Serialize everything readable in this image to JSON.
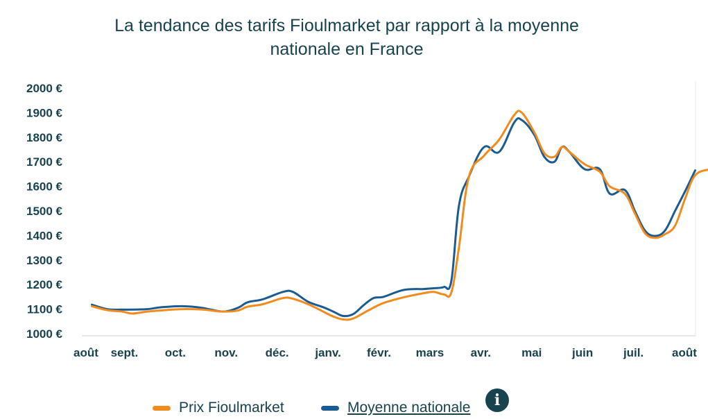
{
  "chart_data": {
    "type": "line",
    "title_lines": [
      "La tendance des tarifs Fioulmarket par rapport à la moyenne",
      "nationale en France"
    ],
    "x_labels": [
      "août",
      "sept.",
      "oct.",
      "nov.",
      "déc.",
      "janv.",
      "févr.",
      "mars",
      "avr.",
      "mai",
      "juin",
      "juil.",
      "août"
    ],
    "y_ticks": [
      "2000 €",
      "1900 €",
      "1800 €",
      "1700 €",
      "1600 €",
      "1500 €",
      "1400 €",
      "1300 €",
      "1200 €",
      "1100 €",
      "1000 €"
    ],
    "ylim": [
      1000,
      2000
    ],
    "xlim": [
      0,
      12
    ],
    "grid": false,
    "legend_position": "bottom",
    "series": [
      {
        "name": "Prix Fioulmarket",
        "color": "#f28a1c",
        "points": [
          [
            0.2,
            1112
          ],
          [
            0.5,
            1096
          ],
          [
            0.8,
            1090
          ],
          [
            1.0,
            1082
          ],
          [
            1.3,
            1090
          ],
          [
            1.6,
            1095
          ],
          [
            2.0,
            1100
          ],
          [
            2.4,
            1098
          ],
          [
            2.8,
            1090
          ],
          [
            3.1,
            1094
          ],
          [
            3.3,
            1110
          ],
          [
            3.6,
            1120
          ],
          [
            4.0,
            1145
          ],
          [
            4.2,
            1142
          ],
          [
            4.5,
            1120
          ],
          [
            4.8,
            1090
          ],
          [
            5.0,
            1070
          ],
          [
            5.2,
            1058
          ],
          [
            5.4,
            1062
          ],
          [
            5.7,
            1095
          ],
          [
            6.0,
            1125
          ],
          [
            6.4,
            1148
          ],
          [
            6.8,
            1165
          ],
          [
            7.0,
            1170
          ],
          [
            7.2,
            1160
          ],
          [
            7.35,
            1168
          ],
          [
            7.5,
            1350
          ],
          [
            7.7,
            1640
          ],
          [
            8.0,
            1725
          ],
          [
            8.3,
            1790
          ],
          [
            8.6,
            1890
          ],
          [
            8.75,
            1900
          ],
          [
            9.0,
            1820
          ],
          [
            9.2,
            1735
          ],
          [
            9.4,
            1720
          ],
          [
            9.55,
            1760
          ],
          [
            9.7,
            1740
          ],
          [
            10.0,
            1690
          ],
          [
            10.3,
            1660
          ],
          [
            10.5,
            1600
          ],
          [
            10.8,
            1570
          ],
          [
            11.0,
            1490
          ],
          [
            11.2,
            1410
          ],
          [
            11.4,
            1390
          ],
          [
            11.6,
            1405
          ],
          [
            11.8,
            1440
          ],
          [
            12.0,
            1550
          ],
          [
            12.2,
            1645
          ],
          [
            12.5,
            1670
          ]
        ]
      },
      {
        "name": "Moyenne nationale",
        "color": "#1a5c91",
        "points": [
          [
            0.2,
            1118
          ],
          [
            0.5,
            1100
          ],
          [
            0.8,
            1098
          ],
          [
            1.0,
            1098
          ],
          [
            1.3,
            1100
          ],
          [
            1.6,
            1108
          ],
          [
            2.0,
            1112
          ],
          [
            2.4,
            1105
          ],
          [
            2.8,
            1090
          ],
          [
            3.1,
            1105
          ],
          [
            3.3,
            1128
          ],
          [
            3.6,
            1140
          ],
          [
            4.0,
            1170
          ],
          [
            4.2,
            1170
          ],
          [
            4.5,
            1130
          ],
          [
            4.8,
            1108
          ],
          [
            5.0,
            1090
          ],
          [
            5.2,
            1072
          ],
          [
            5.4,
            1080
          ],
          [
            5.6,
            1115
          ],
          [
            5.8,
            1145
          ],
          [
            6.0,
            1150
          ],
          [
            6.4,
            1178
          ],
          [
            6.8,
            1182
          ],
          [
            7.0,
            1185
          ],
          [
            7.2,
            1190
          ],
          [
            7.35,
            1215
          ],
          [
            7.5,
            1520
          ],
          [
            7.7,
            1640
          ],
          [
            8.0,
            1760
          ],
          [
            8.3,
            1740
          ],
          [
            8.6,
            1860
          ],
          [
            8.75,
            1870
          ],
          [
            9.0,
            1810
          ],
          [
            9.2,
            1720
          ],
          [
            9.4,
            1700
          ],
          [
            9.55,
            1760
          ],
          [
            9.7,
            1740
          ],
          [
            10.0,
            1670
          ],
          [
            10.3,
            1670
          ],
          [
            10.5,
            1570
          ],
          [
            10.8,
            1585
          ],
          [
            11.0,
            1500
          ],
          [
            11.2,
            1420
          ],
          [
            11.4,
            1398
          ],
          [
            11.6,
            1420
          ],
          [
            11.8,
            1500
          ],
          [
            12.0,
            1580
          ],
          [
            12.2,
            1665
          ]
        ]
      }
    ]
  }
}
